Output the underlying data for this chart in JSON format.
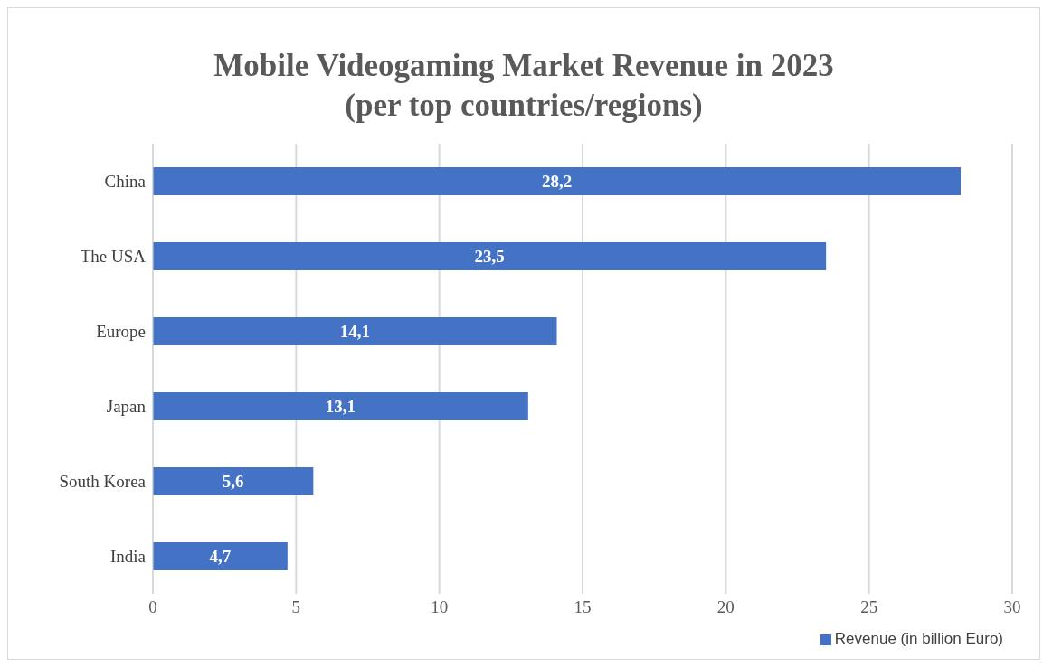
{
  "chart_data": {
    "type": "bar",
    "orientation": "horizontal",
    "title": "Mobile Videogaming Market Revenue in 2023\n(per top countries/regions)",
    "categories": [
      "China",
      "The USA",
      "Europe",
      "Japan",
      "South Korea",
      "India"
    ],
    "series": [
      {
        "name": "Revenue (in billion Euro)",
        "color": "#4472c4",
        "values": [
          28.2,
          23.5,
          14.1,
          13.1,
          5.6,
          4.7
        ],
        "value_labels": [
          "28,2",
          "23,5",
          "14,1",
          "13,1",
          "5,6",
          "4,7"
        ]
      }
    ],
    "xlim": [
      0,
      30
    ],
    "xticks": [
      0,
      5,
      10,
      15,
      20,
      25,
      30
    ],
    "grid": "x",
    "legend": "bottom right"
  }
}
